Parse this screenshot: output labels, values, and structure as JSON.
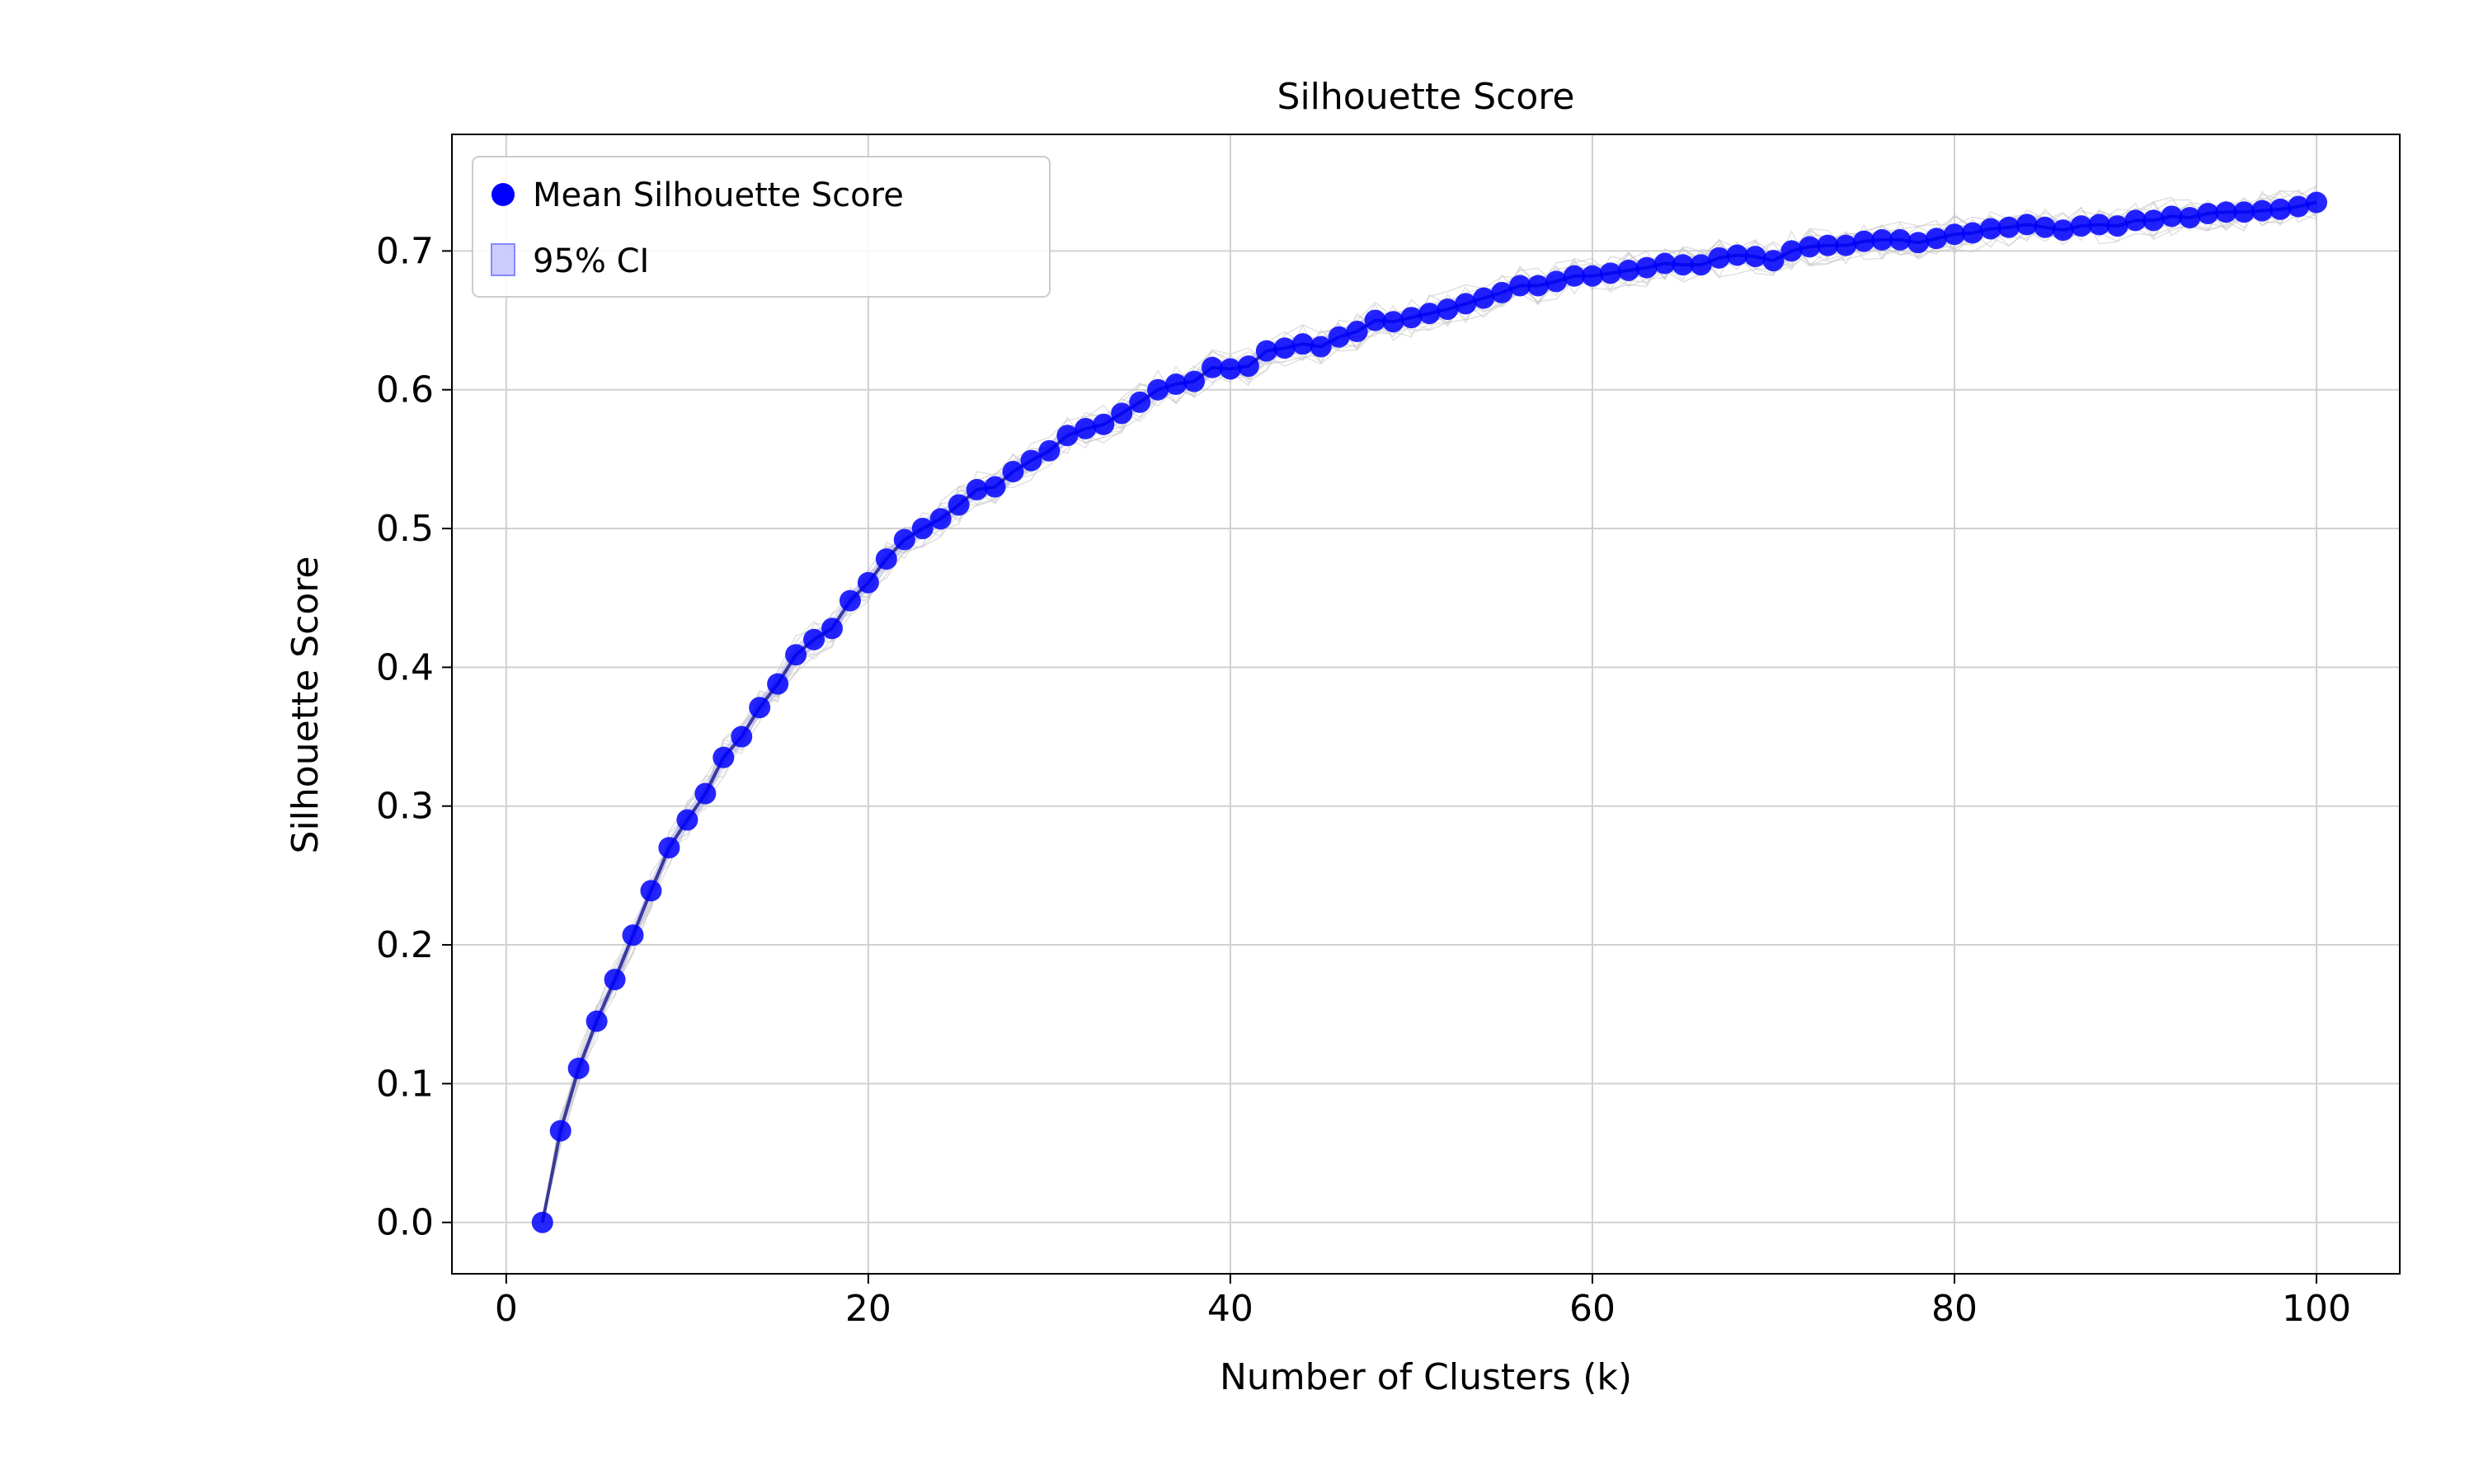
{
  "chart_data": {
    "type": "line",
    "title": "Silhouette Score",
    "xlabel": "Number of Clusters (k)",
    "ylabel": "Silhouette Score",
    "xlim": [
      -3,
      104.6
    ],
    "ylim": [
      -0.037,
      0.784
    ],
    "xticks": [
      0,
      20,
      40,
      60,
      80,
      100
    ],
    "yticks": [
      0.0,
      0.1,
      0.2,
      0.3,
      0.4,
      0.5,
      0.6,
      0.7
    ],
    "xtick_labels": [
      "0",
      "20",
      "40",
      "60",
      "80",
      "100"
    ],
    "ytick_labels": [
      "0.0",
      "0.1",
      "0.2",
      "0.3",
      "0.4",
      "0.5",
      "0.6",
      "0.7"
    ],
    "grid": true,
    "legend_position": "upper-left",
    "legend": [
      {
        "label": "Mean Silhouette Score",
        "marker": "circle"
      },
      {
        "label": "95% CI",
        "marker": "square"
      }
    ],
    "series": [
      {
        "name": "Mean Silhouette Score",
        "color": "#0000ff",
        "x": [
          2,
          3,
          4,
          5,
          6,
          7,
          8,
          9,
          10,
          11,
          12,
          13,
          14,
          15,
          16,
          17,
          18,
          19,
          20,
          21,
          22,
          23,
          24,
          25,
          26,
          27,
          28,
          29,
          30,
          31,
          32,
          33,
          34,
          35,
          36,
          37,
          38,
          39,
          40,
          41,
          42,
          43,
          44,
          45,
          46,
          47,
          48,
          49,
          50,
          51,
          52,
          53,
          54,
          55,
          56,
          57,
          58,
          59,
          60,
          61,
          62,
          63,
          64,
          65,
          66,
          67,
          68,
          69,
          70,
          71,
          72,
          73,
          74,
          75,
          76,
          77,
          78,
          79,
          80,
          81,
          82,
          83,
          84,
          85,
          86,
          87,
          88,
          89,
          90,
          91,
          92,
          93,
          94,
          95,
          96,
          97,
          98,
          99,
          100
        ],
        "y": [
          0.0,
          0.066,
          0.111,
          0.145,
          0.175,
          0.207,
          0.239,
          0.27,
          0.29,
          0.309,
          0.335,
          0.35,
          0.371,
          0.388,
          0.409,
          0.42,
          0.428,
          0.448,
          0.461,
          0.478,
          0.492,
          0.5,
          0.507,
          0.517,
          0.528,
          0.53,
          0.541,
          0.549,
          0.556,
          0.567,
          0.572,
          0.575,
          0.583,
          0.591,
          0.6,
          0.604,
          0.606,
          0.616,
          0.615,
          0.617,
          0.628,
          0.63,
          0.633,
          0.631,
          0.638,
          0.642,
          0.65,
          0.649,
          0.652,
          0.655,
          0.658,
          0.662,
          0.666,
          0.67,
          0.675,
          0.675,
          0.678,
          0.682,
          0.682,
          0.684,
          0.686,
          0.688,
          0.691,
          0.69,
          0.69,
          0.695,
          0.697,
          0.696,
          0.693,
          0.7,
          0.703,
          0.704,
          0.704,
          0.707,
          0.708,
          0.708,
          0.706,
          0.709,
          0.712,
          0.713,
          0.716,
          0.717,
          0.719,
          0.717,
          0.715,
          0.718,
          0.719,
          0.718,
          0.722,
          0.722,
          0.725,
          0.724,
          0.727,
          0.728,
          0.728,
          0.729,
          0.73,
          0.732,
          0.735
        ]
      }
    ],
    "ci_color": "#aaaaff",
    "trace_color": "#c8c8c8"
  }
}
